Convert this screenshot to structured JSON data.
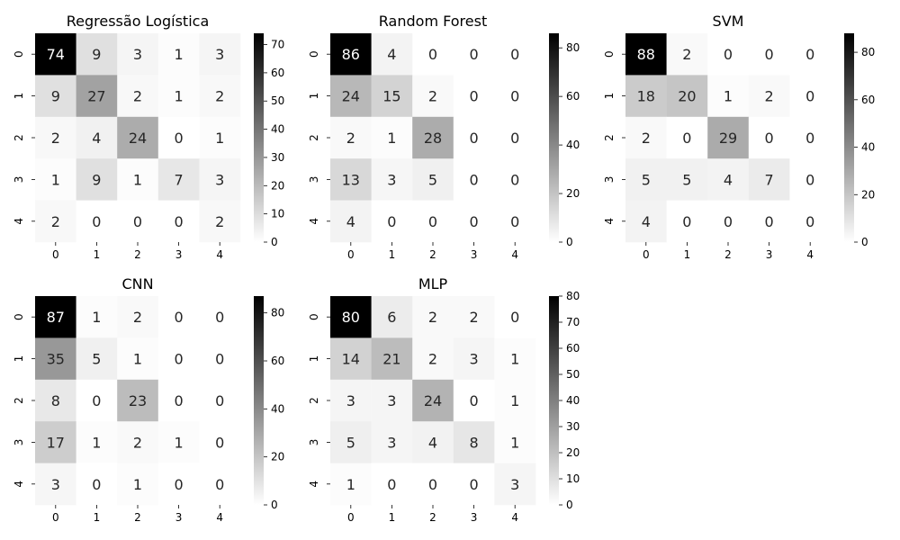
{
  "chart_data": [
    {
      "type": "heatmap",
      "title": "Regressão Logística",
      "x_categories": [
        "0",
        "1",
        "2",
        "3",
        "4"
      ],
      "y_categories": [
        "0",
        "1",
        "2",
        "3",
        "4"
      ],
      "values": [
        [
          74,
          9,
          3,
          1,
          3
        ],
        [
          9,
          27,
          2,
          1,
          2
        ],
        [
          2,
          4,
          24,
          0,
          1
        ],
        [
          1,
          9,
          1,
          7,
          3
        ],
        [
          2,
          0,
          0,
          0,
          2
        ]
      ],
      "colorbar": {
        "range": [
          0,
          74
        ],
        "ticks": [
          0,
          10,
          20,
          30,
          40,
          50,
          60,
          70
        ]
      },
      "colormap": "white-to-black"
    },
    {
      "type": "heatmap",
      "title": "Random Forest",
      "x_categories": [
        "0",
        "1",
        "2",
        "3",
        "4"
      ],
      "y_categories": [
        "0",
        "1",
        "2",
        "3",
        "4"
      ],
      "values": [
        [
          86,
          4,
          0,
          0,
          0
        ],
        [
          24,
          15,
          2,
          0,
          0
        ],
        [
          2,
          1,
          28,
          0,
          0
        ],
        [
          13,
          3,
          5,
          0,
          0
        ],
        [
          4,
          0,
          0,
          0,
          0
        ]
      ],
      "colorbar": {
        "range": [
          0,
          86
        ],
        "ticks": [
          0,
          20,
          40,
          60,
          80
        ]
      },
      "colormap": "white-to-black"
    },
    {
      "type": "heatmap",
      "title": "SVM",
      "x_categories": [
        "0",
        "1",
        "2",
        "3",
        "4"
      ],
      "y_categories": [
        "0",
        "1",
        "2",
        "3",
        "4"
      ],
      "values": [
        [
          88,
          2,
          0,
          0,
          0
        ],
        [
          18,
          20,
          1,
          2,
          0
        ],
        [
          2,
          0,
          29,
          0,
          0
        ],
        [
          5,
          5,
          4,
          7,
          0
        ],
        [
          4,
          0,
          0,
          0,
          0
        ]
      ],
      "colorbar": {
        "range": [
          0,
          88
        ],
        "ticks": [
          0,
          20,
          40,
          60,
          80
        ]
      },
      "colormap": "white-to-black"
    },
    {
      "type": "heatmap",
      "title": "CNN",
      "x_categories": [
        "0",
        "1",
        "2",
        "3",
        "4"
      ],
      "y_categories": [
        "0",
        "1",
        "2",
        "3",
        "4"
      ],
      "values": [
        [
          87,
          1,
          2,
          0,
          0
        ],
        [
          35,
          5,
          1,
          0,
          0
        ],
        [
          8,
          0,
          23,
          0,
          0
        ],
        [
          17,
          1,
          2,
          1,
          0
        ],
        [
          3,
          0,
          1,
          0,
          0
        ]
      ],
      "colorbar": {
        "range": [
          0,
          87
        ],
        "ticks": [
          0,
          20,
          40,
          60,
          80
        ]
      },
      "colormap": "white-to-black"
    },
    {
      "type": "heatmap",
      "title": "MLP",
      "x_categories": [
        "0",
        "1",
        "2",
        "3",
        "4"
      ],
      "y_categories": [
        "0",
        "1",
        "2",
        "3",
        "4"
      ],
      "values": [
        [
          80,
          6,
          2,
          2,
          0
        ],
        [
          14,
          21,
          2,
          3,
          1
        ],
        [
          3,
          3,
          24,
          0,
          1
        ],
        [
          5,
          3,
          4,
          8,
          1
        ],
        [
          1,
          0,
          0,
          0,
          3
        ]
      ],
      "colorbar": {
        "range": [
          0,
          80
        ],
        "ticks": [
          0,
          10,
          20,
          30,
          40,
          50,
          60,
          70,
          80
        ]
      },
      "colormap": "white-to-black"
    }
  ]
}
